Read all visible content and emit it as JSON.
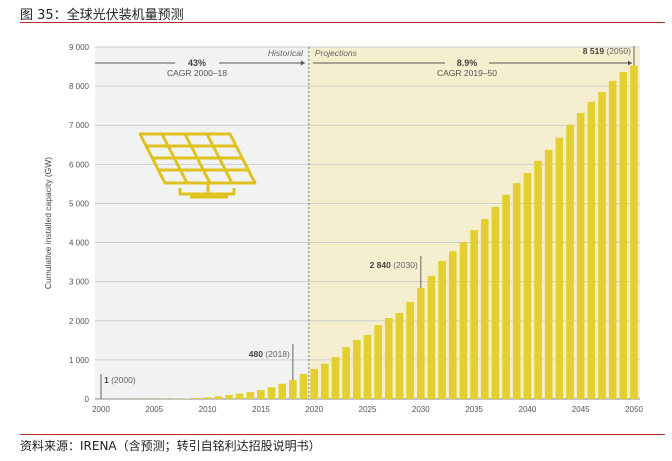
{
  "title": "图 35：全球光伏装机量预测",
  "source": "资料来源：IRENA（含预测；转引自铭利达招股说明书）",
  "chart_data": {
    "type": "bar",
    "ylabel": "Cumulative installed capacity (GW)",
    "xlabel": "",
    "ylim": [
      0,
      9000
    ],
    "yticks": [
      0,
      1000,
      2000,
      3000,
      4000,
      5000,
      6000,
      7000,
      8000,
      9000
    ],
    "ytick_labels": [
      "0",
      "1 000",
      "2 000",
      "3 000",
      "4 000",
      "5 000",
      "6 000",
      "7 000",
      "8 000",
      "9 000"
    ],
    "xticks": [
      2000,
      2005,
      2010,
      2015,
      2020,
      2025,
      2030,
      2035,
      2040,
      2045,
      2050
    ],
    "grid": true,
    "bar_color": "#e3cf2e",
    "x": [
      2000,
      2001,
      2002,
      2003,
      2004,
      2005,
      2006,
      2007,
      2008,
      2009,
      2010,
      2011,
      2012,
      2013,
      2014,
      2015,
      2016,
      2017,
      2018,
      2019,
      2020,
      2021,
      2022,
      2023,
      2024,
      2025,
      2026,
      2027,
      2028,
      2029,
      2030,
      2031,
      2032,
      2033,
      2034,
      2035,
      2036,
      2037,
      2038,
      2039,
      2040,
      2041,
      2042,
      2043,
      2044,
      2045,
      2046,
      2047,
      2048,
      2049,
      2050
    ],
    "values": [
      1,
      2,
      2,
      3,
      4,
      5,
      6,
      8,
      15,
      23,
      40,
      70,
      100,
      138,
      177,
      227,
      300,
      390,
      480,
      640,
      770,
      900,
      1070,
      1330,
      1510,
      1640,
      1890,
      2070,
      2200,
      2480,
      2840,
      3150,
      3530,
      3780,
      4010,
      4320,
      4600,
      4910,
      5220,
      5520,
      5780,
      6090,
      6370,
      6680,
      7010,
      7310,
      7600,
      7850,
      8130,
      8360,
      8519
    ],
    "regions": [
      {
        "label": "Historical",
        "color": "#f1f2f2",
        "cagr": "43%",
        "cagr_label": "CAGR 2000–18"
      },
      {
        "label": "Projections",
        "color": "#f5efcf",
        "cagr": "8.9%",
        "cagr_label": "CAGR 2019–50"
      }
    ],
    "annotations": [
      {
        "x": 2000,
        "value": "1",
        "year": "(2000)"
      },
      {
        "x": 2018,
        "value": "480",
        "year": "(2018)"
      },
      {
        "x": 2030,
        "value": "2 840",
        "year": "(2030)"
      },
      {
        "x": 2050,
        "value": "8 519",
        "year": "(2050)"
      }
    ]
  }
}
